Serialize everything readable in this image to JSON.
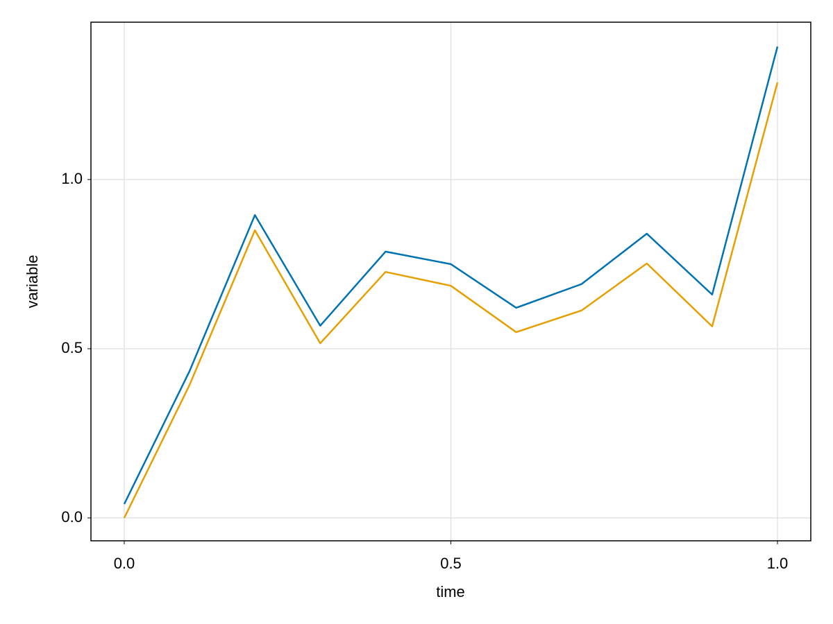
{
  "chart_data": {
    "type": "line",
    "xlabel": "time",
    "ylabel": "variable",
    "x": [
      0,
      0.1,
      0.2,
      0.3,
      0.4,
      0.5,
      0.6,
      0.7,
      0.8,
      0.9,
      1.0
    ],
    "series": [
      {
        "color": "#0072b2",
        "values": [
          0.041,
          0.434,
          0.895,
          0.568,
          0.787,
          0.75,
          0.621,
          0.691,
          0.84,
          0.66,
          1.393
        ]
      },
      {
        "color": "#e69f00",
        "values": [
          0,
          0.393,
          0.85,
          0.516,
          0.727,
          0.686,
          0.549,
          0.613,
          0.752,
          0.566,
          1.287
        ]
      }
    ],
    "xlim": [
      -0.051,
      1.051
    ],
    "xticks": [
      {
        "value": 0,
        "label": "0.0"
      },
      {
        "value": 0.5,
        "label": "0.5"
      },
      {
        "value": 1,
        "label": "1.0"
      }
    ],
    "ylim": [
      -0.0676,
      1.465
    ],
    "yticks": [
      {
        "value": 0,
        "label": "0.0"
      },
      {
        "value": 0.5,
        "label": "0.5"
      },
      {
        "value": 1,
        "label": "1.0"
      }
    ],
    "grid": true
  }
}
